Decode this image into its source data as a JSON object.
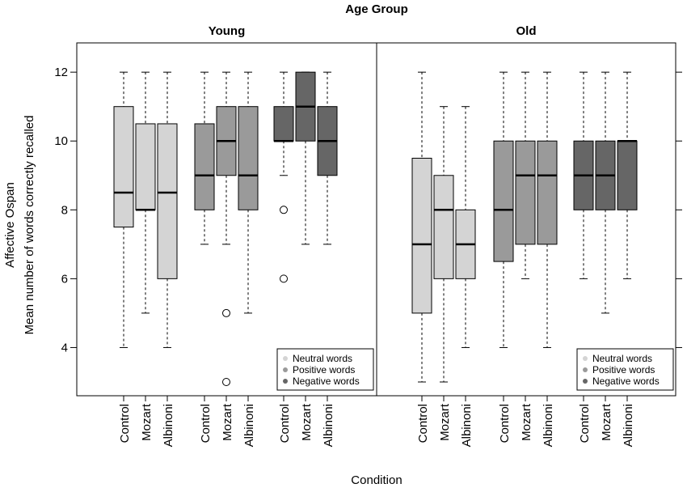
{
  "chart_data": {
    "type": "boxplot",
    "title": "Age Group",
    "xlabel": "Condition",
    "ylabel_line1": "Affective Ospan",
    "ylabel_line2": "Mean number of words correctly recalled",
    "ylim": [
      2.6,
      12.85
    ],
    "yticks": [
      "4",
      "6",
      "8",
      "10",
      "12"
    ],
    "conditions": [
      "Control",
      "Mozart",
      "Albinoni"
    ],
    "word_types": [
      "Neutral words",
      "Positive words",
      "Negative words"
    ],
    "colors": {
      "Neutral words": "#d4d4d4",
      "Positive words": "#9a9a9a",
      "Negative words": "#666666"
    },
    "panels": [
      {
        "name": "Young",
        "groups": [
          {
            "word_type": "Neutral words",
            "boxes": [
              {
                "condition": "Control",
                "min": 4,
                "q1": 7.5,
                "median": 8.5,
                "q3": 11,
                "max": 12,
                "outliers": []
              },
              {
                "condition": "Mozart",
                "min": 5,
                "q1": 8,
                "median": 8,
                "q3": 10.5,
                "max": 12,
                "outliers": []
              },
              {
                "condition": "Albinoni",
                "min": 4,
                "q1": 6,
                "median": 8.5,
                "q3": 10.5,
                "max": 12,
                "outliers": []
              }
            ]
          },
          {
            "word_type": "Positive words",
            "boxes": [
              {
                "condition": "Control",
                "min": 7,
                "q1": 8,
                "median": 9,
                "q3": 10.5,
                "max": 12,
                "outliers": []
              },
              {
                "condition": "Mozart",
                "min": 7,
                "q1": 9,
                "median": 10,
                "q3": 11,
                "max": 12,
                "outliers": [
                  5,
                  3
                ]
              },
              {
                "condition": "Albinoni",
                "min": 5,
                "q1": 8,
                "median": 9,
                "q3": 11,
                "max": 12,
                "outliers": []
              }
            ]
          },
          {
            "word_type": "Negative words",
            "boxes": [
              {
                "condition": "Control",
                "min": 9,
                "q1": 10,
                "median": 10,
                "q3": 11,
                "max": 12,
                "outliers": [
                  8,
                  6
                ]
              },
              {
                "condition": "Mozart",
                "min": 7,
                "q1": 10,
                "median": 11,
                "q3": 12,
                "max": 12,
                "outliers": []
              },
              {
                "condition": "Albinoni",
                "min": 7,
                "q1": 9,
                "median": 10,
                "q3": 11,
                "max": 12,
                "outliers": []
              }
            ]
          }
        ]
      },
      {
        "name": "Old",
        "groups": [
          {
            "word_type": "Neutral words",
            "boxes": [
              {
                "condition": "Control",
                "min": 3,
                "q1": 5,
                "median": 7,
                "q3": 9.5,
                "max": 12,
                "outliers": []
              },
              {
                "condition": "Mozart",
                "min": 3,
                "q1": 6,
                "median": 8,
                "q3": 9,
                "max": 11,
                "outliers": []
              },
              {
                "condition": "Albinoni",
                "min": 4,
                "q1": 6,
                "median": 7,
                "q3": 8,
                "max": 11,
                "outliers": []
              }
            ]
          },
          {
            "word_type": "Positive words",
            "boxes": [
              {
                "condition": "Control",
                "min": 4,
                "q1": 6.5,
                "median": 8,
                "q3": 10,
                "max": 12,
                "outliers": []
              },
              {
                "condition": "Mozart",
                "min": 6,
                "q1": 7,
                "median": 9,
                "q3": 10,
                "max": 12,
                "outliers": []
              },
              {
                "condition": "Albinoni",
                "min": 4,
                "q1": 7,
                "median": 9,
                "q3": 10,
                "max": 12,
                "outliers": []
              }
            ]
          },
          {
            "word_type": "Negative words",
            "boxes": [
              {
                "condition": "Control",
                "min": 6,
                "q1": 8,
                "median": 9,
                "q3": 10,
                "max": 12,
                "outliers": []
              },
              {
                "condition": "Mozart",
                "min": 5,
                "q1": 8,
                "median": 9,
                "q3": 10,
                "max": 12,
                "outliers": []
              },
              {
                "condition": "Albinoni",
                "min": 6,
                "q1": 8,
                "median": 10,
                "q3": 10,
                "max": 12,
                "outliers": []
              }
            ]
          }
        ]
      }
    ]
  }
}
